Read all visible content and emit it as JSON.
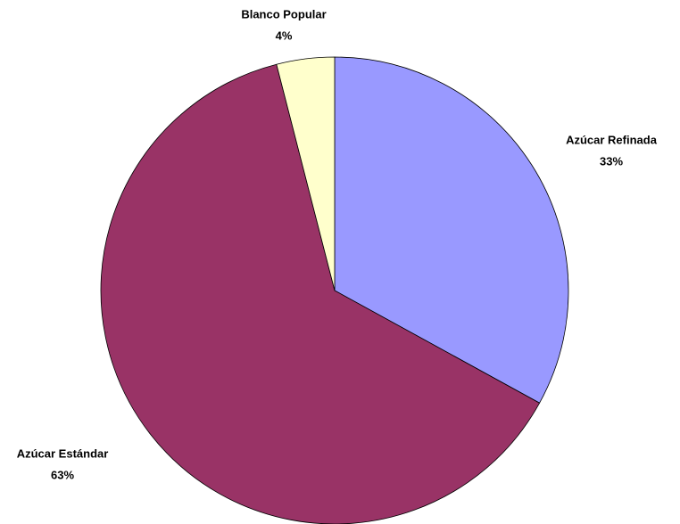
{
  "chart_data": {
    "type": "pie",
    "categories": [
      "Azúcar Refinada",
      "Azúcar Estándar",
      "Blanco Popular"
    ],
    "values": [
      33,
      63,
      4
    ],
    "value_labels": [
      "33%",
      "63%",
      "4%"
    ],
    "colors": [
      "#9999ff",
      "#993366",
      "#ffffcc"
    ]
  }
}
